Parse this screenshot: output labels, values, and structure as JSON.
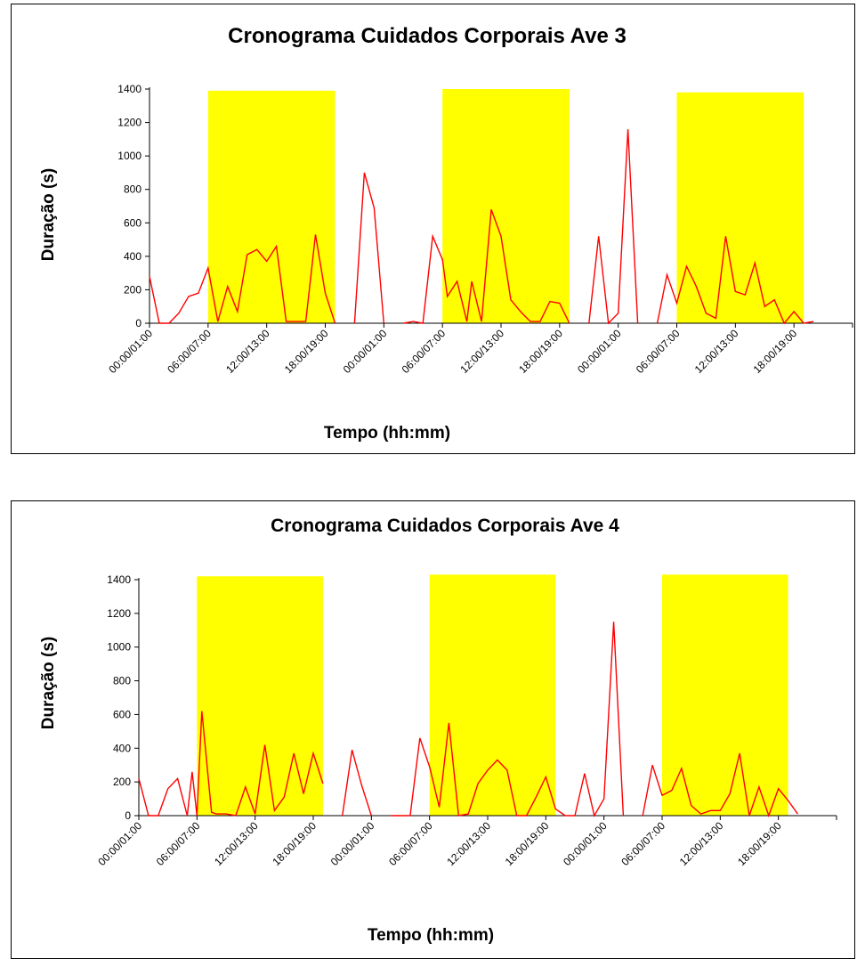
{
  "chart_data": [
    {
      "type": "line",
      "title": "Cronograma Cuidados Corporais Ave 3",
      "xlabel": "Tempo (hh:mm)",
      "ylabel": "Duração (s)",
      "ylim": [
        0,
        1400
      ],
      "yticks": [
        0,
        200,
        400,
        600,
        800,
        1000,
        1200,
        1400
      ],
      "xtick_labels": [
        "00:00/01:00",
        "06:00/07:00",
        "12:00/13:00",
        "18:00/19:00",
        "00:00/01:00",
        "06:00/07:00",
        "12:00/13:00",
        "18:00/19:00",
        "00:00/01:00",
        "06:00/07:00",
        "12:00/13:00",
        "18:00/19:00"
      ],
      "x_hours_span": [
        0,
        72
      ],
      "highlight_periods": [
        {
          "from": 6,
          "to": 19,
          "height": 1390
        },
        {
          "from": 30,
          "to": 43,
          "height": 1400
        },
        {
          "from": 54,
          "to": 67,
          "height": 1380
        }
      ],
      "highlight_color": "#ffff00",
      "line_color": "#ff0000",
      "series": [
        {
          "points": [
            [
              0,
              280
            ],
            [
              1,
              0
            ],
            [
              2,
              0
            ],
            [
              3,
              60
            ],
            [
              4,
              160
            ],
            [
              5,
              180
            ],
            [
              6,
              330
            ],
            [
              7,
              10
            ],
            [
              8,
              220
            ],
            [
              9,
              70
            ],
            [
              10,
              410
            ],
            [
              11,
              440
            ],
            [
              12,
              370
            ],
            [
              13,
              460
            ],
            [
              14,
              10
            ],
            [
              15,
              10
            ],
            [
              16,
              10
            ],
            [
              17,
              530
            ],
            [
              18,
              180
            ],
            [
              19,
              0
            ],
            null,
            [
              21,
              0
            ],
            [
              22,
              900
            ],
            [
              23,
              690
            ],
            [
              24,
              0
            ],
            null,
            [
              26,
              0
            ],
            [
              27,
              10
            ],
            [
              28,
              0
            ],
            [
              29,
              520
            ],
            [
              30,
              380
            ],
            [
              30.5,
              160
            ],
            [
              31.5,
              250
            ],
            [
              32.5,
              10
            ],
            [
              33,
              250
            ],
            [
              34,
              10
            ],
            [
              35,
              680
            ],
            [
              36,
              520
            ],
            [
              37,
              140
            ],
            [
              38,
              70
            ],
            [
              39,
              10
            ],
            [
              40,
              10
            ],
            [
              41,
              130
            ],
            [
              42,
              120
            ],
            [
              43,
              0
            ],
            null,
            [
              45,
              0
            ],
            [
              46,
              520
            ],
            [
              47,
              0
            ],
            [
              48,
              60
            ],
            [
              49,
              1160
            ],
            [
              50,
              0
            ],
            null,
            [
              52,
              0
            ],
            [
              53,
              290
            ],
            [
              54,
              120
            ],
            [
              55,
              340
            ],
            [
              56,
              220
            ],
            [
              57,
              60
            ],
            [
              58,
              30
            ],
            [
              59,
              520
            ],
            [
              60,
              190
            ],
            [
              61,
              170
            ],
            [
              62,
              360
            ],
            [
              63,
              100
            ],
            [
              64,
              140
            ],
            [
              65,
              0
            ],
            [
              66,
              70
            ],
            [
              67,
              0
            ],
            [
              68,
              10
            ]
          ]
        }
      ]
    },
    {
      "type": "line",
      "title": "Cronograma Cuidados Corporais Ave 4",
      "xlabel": "Tempo (hh:mm)",
      "ylabel": "Duração (s)",
      "ylim": [
        0,
        1400
      ],
      "yticks": [
        0,
        200,
        400,
        600,
        800,
        1000,
        1200,
        1400
      ],
      "xtick_labels": [
        "00:00/01:00",
        "06:00/07:00",
        "12:00/13:00",
        "18:00/19:00",
        "00:00/01:00",
        "06:00/07:00",
        "12:00/13:00",
        "18:00/19:00",
        "00:00/01:00",
        "06:00/07:00",
        "12:00/13:00",
        "18:00/19:00"
      ],
      "x_hours_span": [
        0,
        72
      ],
      "highlight_periods": [
        {
          "from": 6,
          "to": 19,
          "height": 1420
        },
        {
          "from": 30,
          "to": 43,
          "height": 1430
        },
        {
          "from": 54,
          "to": 67,
          "height": 1430
        }
      ],
      "highlight_color": "#ffff00",
      "line_color": "#ff0000",
      "series": [
        {
          "points": [
            [
              0,
              220
            ],
            [
              1,
              0
            ],
            [
              2,
              0
            ],
            [
              3,
              160
            ],
            [
              4,
              220
            ],
            [
              5,
              0
            ],
            [
              5.5,
              260
            ],
            [
              6,
              0
            ],
            [
              6.5,
              620
            ],
            [
              7.5,
              20
            ],
            [
              8,
              10
            ],
            [
              9,
              10
            ],
            [
              10,
              0
            ],
            [
              11,
              170
            ],
            [
              12,
              10
            ],
            [
              13,
              420
            ],
            [
              14,
              30
            ],
            [
              15,
              110
            ],
            [
              16,
              370
            ],
            [
              17,
              130
            ],
            [
              18,
              370
            ],
            [
              19,
              190
            ],
            null,
            [
              21,
              0
            ],
            [
              22,
              390
            ],
            [
              23,
              180
            ],
            [
              24,
              0
            ],
            null,
            [
              26,
              0
            ],
            [
              27,
              0
            ],
            [
              28,
              0
            ],
            [
              29,
              460
            ],
            [
              30,
              290
            ],
            [
              31,
              50
            ],
            [
              32,
              550
            ],
            [
              33,
              0
            ],
            [
              34,
              10
            ],
            [
              35,
              190
            ],
            [
              36,
              270
            ],
            [
              37,
              330
            ],
            [
              38,
              270
            ],
            [
              39,
              0
            ],
            [
              40,
              0
            ],
            [
              41,
              110
            ],
            [
              42,
              230
            ],
            [
              43,
              40
            ],
            [
              44,
              0
            ],
            [
              45,
              0
            ],
            [
              46,
              250
            ],
            [
              47,
              0
            ],
            [
              48,
              100
            ],
            [
              49,
              1150
            ],
            [
              50,
              0
            ],
            null,
            [
              52,
              0
            ],
            [
              53,
              300
            ],
            [
              54,
              120
            ],
            [
              55,
              150
            ],
            [
              56,
              280
            ],
            [
              57,
              60
            ],
            [
              58,
              10
            ],
            [
              59,
              30
            ],
            [
              60,
              30
            ],
            [
              61,
              130
            ],
            [
              62,
              370
            ],
            [
              63,
              0
            ],
            [
              64,
              170
            ],
            [
              65,
              0
            ],
            [
              66,
              160
            ],
            [
              67,
              90
            ],
            [
              68,
              10
            ]
          ]
        }
      ]
    }
  ]
}
